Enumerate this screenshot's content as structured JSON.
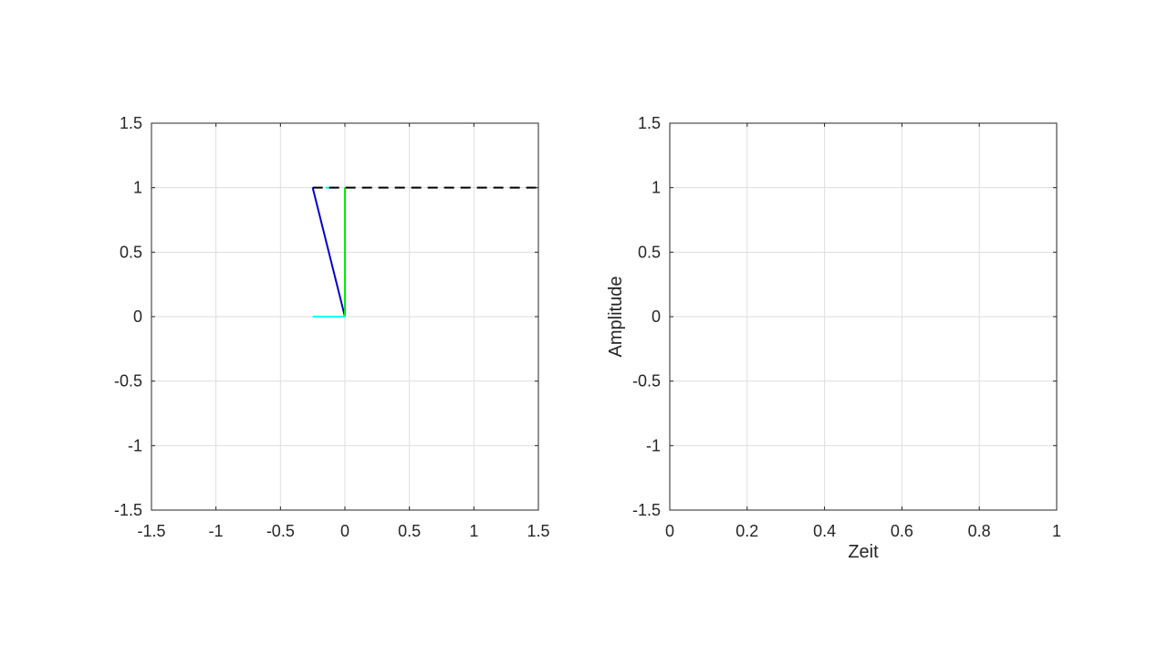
{
  "chart_data": [
    {
      "type": "line",
      "title": "",
      "xlabel": "",
      "ylabel": "",
      "xlim": [
        -1.5,
        1.5
      ],
      "ylim": [
        -1.5,
        1.5
      ],
      "xticks": [
        -1.5,
        -1,
        -0.5,
        0,
        0.5,
        1,
        1.5
      ],
      "yticks": [
        -1.5,
        -1,
        -0.5,
        0,
        0.5,
        1,
        1.5
      ],
      "xtick_labels": [
        "-1.5",
        "-1",
        "-0.5",
        "0",
        "0.5",
        "1",
        "1.5"
      ],
      "ytick_labels": [
        "-1.5",
        "-1",
        "-0.5",
        "0",
        "0.5",
        "1",
        "1.5"
      ],
      "grid": true,
      "series": [
        {
          "x": [
            0,
            -0.25
          ],
          "y": [
            0,
            1
          ],
          "color": "#0000cc",
          "style": "solid"
        },
        {
          "x": [
            0,
            0
          ],
          "y": [
            0,
            1
          ],
          "color": "#00ee00",
          "style": "solid"
        },
        {
          "x": [
            -0.25,
            0
          ],
          "y": [
            0,
            0
          ],
          "color": "#00ffff",
          "style": "solid"
        },
        {
          "x": [
            -0.15,
            -0.08
          ],
          "y": [
            1,
            1
          ],
          "color": "#00ffff",
          "style": "solid"
        },
        {
          "x": [
            -0.25,
            1.5
          ],
          "y": [
            1,
            1
          ],
          "color": "#000000",
          "style": "dashed"
        }
      ]
    },
    {
      "type": "line",
      "title": "",
      "xlabel": "Zeit",
      "ylabel": "Amplitude",
      "xlim": [
        0,
        1
      ],
      "ylim": [
        -1.5,
        1.5
      ],
      "xticks": [
        0,
        0.2,
        0.4,
        0.6,
        0.8,
        1
      ],
      "yticks": [
        -1.5,
        -1,
        -0.5,
        0,
        0.5,
        1,
        1.5
      ],
      "xtick_labels": [
        "0",
        "0.2",
        "0.4",
        "0.6",
        "0.8",
        "1"
      ],
      "ytick_labels": [
        "-1.5",
        "-1",
        "-0.5",
        "0",
        "0.5",
        "1",
        "1.5"
      ],
      "grid": true,
      "series": []
    }
  ]
}
